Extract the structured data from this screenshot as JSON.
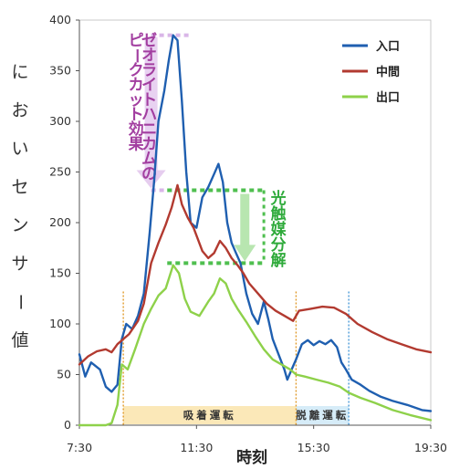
{
  "chart_data": {
    "type": "line",
    "xlabel": "時刻",
    "ylabel": "においセンサー値",
    "xticks": [
      "7:30",
      "11:30",
      "15:30",
      "19:30"
    ],
    "ylim": [
      0,
      400
    ],
    "yticks": [
      0,
      50,
      100,
      150,
      200,
      250,
      300,
      350,
      400
    ],
    "legend": "top-right",
    "grid": false,
    "colors": {
      "inlet": "#1f5fb0",
      "middle": "#b23a30",
      "outlet": "#8ed14a"
    },
    "series": [
      {
        "name": "入口",
        "color": "#1f5fb0",
        "points": [
          [
            7.5,
            70
          ],
          [
            7.7,
            48
          ],
          [
            7.9,
            62
          ],
          [
            8.2,
            55
          ],
          [
            8.4,
            38
          ],
          [
            8.6,
            33
          ],
          [
            8.8,
            40
          ],
          [
            8.95,
            85
          ],
          [
            9.1,
            100
          ],
          [
            9.3,
            95
          ],
          [
            9.5,
            108
          ],
          [
            9.7,
            130
          ],
          [
            9.9,
            190
          ],
          [
            10.05,
            240
          ],
          [
            10.2,
            300
          ],
          [
            10.4,
            330
          ],
          [
            10.55,
            360
          ],
          [
            10.7,
            385
          ],
          [
            10.85,
            380
          ],
          [
            11.0,
            320
          ],
          [
            11.15,
            250
          ],
          [
            11.3,
            200
          ],
          [
            11.5,
            195
          ],
          [
            11.7,
            225
          ],
          [
            11.9,
            235
          ],
          [
            12.1,
            248
          ],
          [
            12.25,
            258
          ],
          [
            12.4,
            240
          ],
          [
            12.55,
            200
          ],
          [
            12.7,
            180
          ],
          [
            12.85,
            170
          ],
          [
            13.0,
            160
          ],
          [
            13.2,
            130
          ],
          [
            13.4,
            110
          ],
          [
            13.6,
            100
          ],
          [
            13.8,
            122
          ],
          [
            13.95,
            105
          ],
          [
            14.1,
            85
          ],
          [
            14.3,
            70
          ],
          [
            14.5,
            55
          ],
          [
            14.6,
            45
          ],
          [
            14.75,
            55
          ],
          [
            14.9,
            65
          ],
          [
            15.1,
            80
          ],
          [
            15.3,
            84
          ],
          [
            15.5,
            79
          ],
          [
            15.7,
            83
          ],
          [
            15.9,
            80
          ],
          [
            16.1,
            84
          ],
          [
            16.3,
            77
          ],
          [
            16.45,
            62
          ],
          [
            16.6,
            55
          ],
          [
            16.8,
            45
          ],
          [
            17.1,
            40
          ],
          [
            17.4,
            34
          ],
          [
            17.8,
            28
          ],
          [
            18.2,
            24
          ],
          [
            18.7,
            20
          ],
          [
            19.2,
            15
          ],
          [
            19.5,
            14
          ]
        ]
      },
      {
        "name": "中間",
        "color": "#b23a30",
        "points": [
          [
            7.5,
            60
          ],
          [
            7.8,
            68
          ],
          [
            8.1,
            73
          ],
          [
            8.4,
            75
          ],
          [
            8.6,
            72
          ],
          [
            8.8,
            80
          ],
          [
            9.0,
            85
          ],
          [
            9.2,
            90
          ],
          [
            9.5,
            103
          ],
          [
            9.7,
            120
          ],
          [
            9.95,
            160
          ],
          [
            10.2,
            180
          ],
          [
            10.45,
            198
          ],
          [
            10.65,
            215
          ],
          [
            10.85,
            237
          ],
          [
            11.0,
            218
          ],
          [
            11.2,
            205
          ],
          [
            11.4,
            195
          ],
          [
            11.7,
            172
          ],
          [
            11.9,
            165
          ],
          [
            12.1,
            170
          ],
          [
            12.3,
            182
          ],
          [
            12.5,
            175
          ],
          [
            12.7,
            165
          ],
          [
            12.9,
            158
          ],
          [
            13.1,
            150
          ],
          [
            13.3,
            140
          ],
          [
            13.6,
            130
          ],
          [
            13.9,
            120
          ],
          [
            14.2,
            113
          ],
          [
            14.5,
            108
          ],
          [
            14.8,
            103
          ],
          [
            15.0,
            113
          ],
          [
            15.4,
            115
          ],
          [
            15.8,
            117
          ],
          [
            16.2,
            116
          ],
          [
            16.6,
            110
          ],
          [
            17.0,
            100
          ],
          [
            17.5,
            92
          ],
          [
            18.0,
            85
          ],
          [
            18.5,
            80
          ],
          [
            19.0,
            75
          ],
          [
            19.5,
            72
          ]
        ]
      },
      {
        "name": "出口",
        "color": "#8ed14a",
        "points": [
          [
            7.5,
            0
          ],
          [
            8.0,
            0
          ],
          [
            8.4,
            0
          ],
          [
            8.6,
            2
          ],
          [
            8.8,
            20
          ],
          [
            8.95,
            60
          ],
          [
            9.15,
            55
          ],
          [
            9.4,
            75
          ],
          [
            9.7,
            100
          ],
          [
            9.95,
            115
          ],
          [
            10.2,
            128
          ],
          [
            10.45,
            135
          ],
          [
            10.7,
            158
          ],
          [
            10.9,
            150
          ],
          [
            11.1,
            125
          ],
          [
            11.3,
            112
          ],
          [
            11.6,
            108
          ],
          [
            11.9,
            122
          ],
          [
            12.1,
            130
          ],
          [
            12.3,
            145
          ],
          [
            12.5,
            140
          ],
          [
            12.7,
            125
          ],
          [
            12.9,
            115
          ],
          [
            13.2,
            102
          ],
          [
            13.5,
            88
          ],
          [
            13.8,
            75
          ],
          [
            14.1,
            65
          ],
          [
            14.4,
            60
          ],
          [
            14.7,
            55
          ],
          [
            14.9,
            50
          ],
          [
            15.2,
            48
          ],
          [
            15.6,
            45
          ],
          [
            16.0,
            42
          ],
          [
            16.4,
            38
          ],
          [
            16.7,
            32
          ],
          [
            17.1,
            27
          ],
          [
            17.6,
            22
          ],
          [
            18.2,
            15
          ],
          [
            18.8,
            10
          ],
          [
            19.5,
            5
          ]
        ]
      }
    ],
    "phases": [
      {
        "label": "吸着運転",
        "start": 9.0,
        "end": 14.9,
        "color": "#fbe8b8"
      },
      {
        "label": "脱離運転",
        "start": 14.9,
        "end": 16.7,
        "color": "#d6ecf8"
      }
    ],
    "phase_markers": [
      {
        "x": 9.0,
        "color": "#e09a2a"
      },
      {
        "x": 14.9,
        "color": "#e09a2a"
      },
      {
        "x": 16.7,
        "color": "#4a9ad8"
      }
    ],
    "annotations": [
      {
        "text": "ゼオライトハニカムのピークカット効果",
        "color": "#a23ea0",
        "from_y": 385,
        "to_y": 232
      },
      {
        "text": "光触媒分解",
        "color": "#2eaa3a",
        "from_y": 232,
        "to_y": 160
      }
    ]
  }
}
